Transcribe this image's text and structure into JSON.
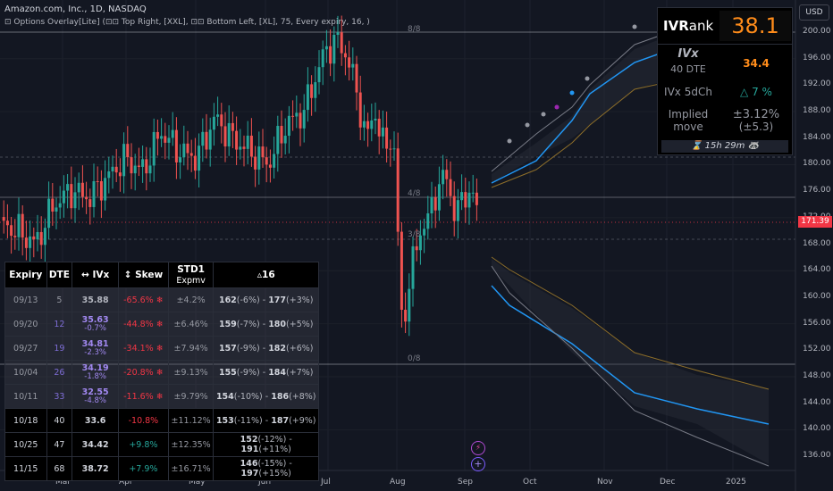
{
  "header": {
    "title": "Amazon.com, Inc., 1D, NASDAQ",
    "indicator": "⊡ Options Overlay[Lite] (⊡⊡ Top Right, [XXL], ⊡⊡ Bottom Left, [XL], 75, Every expiry, 16, )"
  },
  "price_axis": {
    "currency_button": "USD",
    "labels": [
      "200.00",
      "196.00",
      "192.00",
      "188.00",
      "184.00",
      "180.00",
      "176.00",
      "172.00",
      "168.00",
      "164.00",
      "160.00",
      "156.00",
      "152.00",
      "148.00",
      "144.00",
      "140.00",
      "136.00"
    ],
    "current_price": "171.39"
  },
  "time_axis": {
    "labels": [
      "Mar",
      "Apr",
      "May",
      "Jun",
      "Jul",
      "Aug",
      "Sep",
      "Oct",
      "Nov",
      "Dec",
      "2025"
    ]
  },
  "levels": {
    "top": "8/8",
    "mid": "4/8",
    "low": "3/8",
    "bottom": "0/8"
  },
  "ivpanel": {
    "ivrank_label_bold": "IVR",
    "ivrank_label_rest": "ank",
    "ivrank_value": "38.1",
    "ivx_label": "IVx",
    "ivx_dte": "40 DTE",
    "ivx_value": "34.4",
    "ivx5d_label": "IVx 5dCh",
    "ivx5d_value": "△ 7 %",
    "implied_label_1": "Implied",
    "implied_label_2": "move",
    "implied_value_1": "±3.12%",
    "implied_value_2": "(±5.3)",
    "timer": "⌛ 15h 29m 🦝",
    "colors": {
      "accent": "#ff8c1a",
      "up": "#26a69a"
    }
  },
  "table": {
    "headers": {
      "expiry": "Expiry",
      "dte": "DTE",
      "ivx": "↔ IVx",
      "skew": "↕ Skew",
      "std": "STD1",
      "std_sub": "Expmv",
      "delta": "▵16"
    },
    "rows": [
      {
        "expiry": "09/13",
        "dte": "5",
        "ivx": "35.88",
        "ivchg": "",
        "skew": "-65.6% ❄",
        "std": "±4.2%",
        "lo": "162",
        "lo_pct": "(-6%)",
        "hi": "177",
        "hi_pct": "(+3%)"
      },
      {
        "expiry": "09/20",
        "dte": "12",
        "ivx": "35.63",
        "ivchg": "-0.7%",
        "skew": "-44.8% ❄",
        "std": "±6.46%",
        "lo": "159",
        "lo_pct": "(-7%)",
        "hi": "180",
        "hi_pct": "(+5%)"
      },
      {
        "expiry": "09/27",
        "dte": "19",
        "ivx": "34.81",
        "ivchg": "-2.3%",
        "skew": "-34.1% ❄",
        "std": "±7.94%",
        "lo": "157",
        "lo_pct": "(-9%)",
        "hi": "182",
        "hi_pct": "(+6%)"
      },
      {
        "expiry": "10/04",
        "dte": "26",
        "ivx": "34.19",
        "ivchg": "-1.8%",
        "skew": "-20.8% ❄",
        "std": "±9.13%",
        "lo": "155",
        "lo_pct": "(-9%)",
        "hi": "184",
        "hi_pct": "(+7%)"
      },
      {
        "expiry": "10/11",
        "dte": "33",
        "ivx": "32.55",
        "ivchg": "-4.8%",
        "skew": "-11.6% ❄",
        "std": "±9.79%",
        "lo": "154",
        "lo_pct": "(-10%)",
        "hi": "186",
        "hi_pct": "(+8%)"
      },
      {
        "expiry": "10/18",
        "dte": "40",
        "ivx": "33.6",
        "ivchg": "",
        "skew": "-10.8%",
        "std": "±11.12%",
        "lo": "153",
        "lo_pct": "(-11%)",
        "hi": "187",
        "hi_pct": "(+9%)"
      },
      {
        "expiry": "10/25",
        "dte": "47",
        "ivx": "34.42",
        "ivchg": "",
        "skew": "+9.8%",
        "std": "±12.35%",
        "lo": "152",
        "lo_pct": "(-12%)",
        "hi": "191",
        "hi_pct": "(+11%)"
      },
      {
        "expiry": "11/15",
        "dte": "68",
        "ivx": "38.72",
        "ivchg": "",
        "skew": "+7.9%",
        "std": "±16.71%",
        "lo": "146",
        "lo_pct": "(-15%)",
        "hi": "197",
        "hi_pct": "(+15%)"
      }
    ]
  },
  "float_buttons": {
    "bolt": "⚡",
    "plus": "+"
  }
}
